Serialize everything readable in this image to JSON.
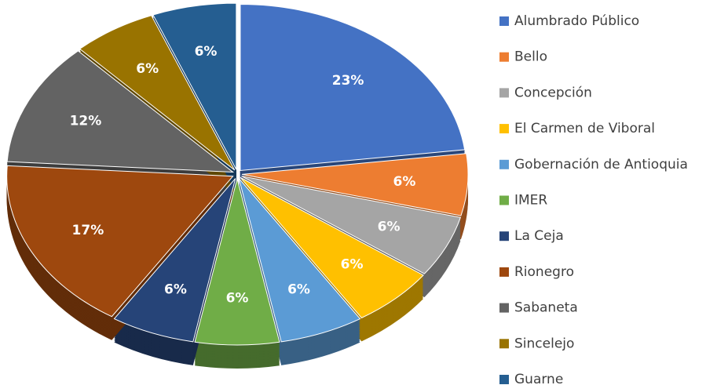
{
  "chart_data": {
    "type": "pie",
    "categories": [
      "Alumbrado Público",
      "Bello",
      "Concepción",
      "El Carmen de Viboral",
      "Gobernación de Antioquia",
      "IMER",
      "La Ceja",
      "Rionegro",
      "Sabaneta",
      "Sincelejo",
      "Guarne"
    ],
    "values": [
      23,
      6,
      6,
      6,
      6,
      6,
      6,
      17,
      12,
      6,
      6
    ],
    "value_labels": [
      "23%",
      "6%",
      "6%",
      "6%",
      "6%",
      "6%",
      "6%",
      "17%",
      "12%",
      "6%",
      "6%"
    ],
    "colors": [
      "#4472c4",
      "#ed7d31",
      "#a5a5a5",
      "#ffc000",
      "#5b9bd5",
      "#70ad47",
      "#264478",
      "#9e480e",
      "#636363",
      "#997300",
      "#255e91"
    ],
    "legend": "right"
  }
}
